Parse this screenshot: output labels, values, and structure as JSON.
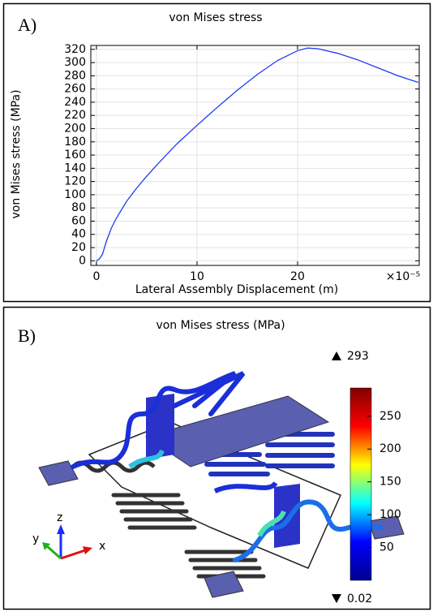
{
  "chart_data": [
    {
      "type": "line",
      "panel": "A)",
      "title": "von Mises stress",
      "xlabel": "Lateral Assembly Displacement (m)",
      "ylabel": "von Mises stress (MPa)",
      "x_multiplier": "×10⁻⁵",
      "x": [
        0,
        0.3,
        0.6,
        1,
        1.5,
        2,
        3,
        4,
        5,
        6,
        8,
        10,
        12,
        14,
        16,
        18,
        20,
        21,
        22,
        24,
        26,
        28,
        30,
        32
      ],
      "series": [
        {
          "name": "von Mises stress",
          "color": "#1f3cf0",
          "values": [
            0,
            3,
            10,
            30,
            50,
            65,
            90,
            110,
            128,
            145,
            177,
            205,
            232,
            258,
            282,
            303,
            318,
            322,
            321,
            314,
            304,
            292,
            280,
            270
          ]
        }
      ],
      "xlim": [
        -0.56,
        32.1
      ],
      "xticks": [
        0,
        10,
        20
      ],
      "ylim": [
        -7,
        325.9
      ],
      "yticks": [
        0,
        20,
        40,
        60,
        80,
        100,
        120,
        140,
        160,
        180,
        200,
        220,
        240,
        260,
        280,
        300,
        320
      ],
      "grid": true
    },
    {
      "type": "colorbar",
      "panel": "B)",
      "title": "von Mises stress (MPa)",
      "max": 293,
      "min": 0.02,
      "clim": [
        0.02,
        293
      ],
      "ticks": [
        50,
        100,
        150,
        200,
        250
      ],
      "colormap": [
        "#00008f",
        "#0000ff",
        "#00ffff",
        "#ffff00",
        "#ff0000",
        "#800000"
      ],
      "axis_labels": [
        "x",
        "y",
        "z"
      ]
    }
  ]
}
